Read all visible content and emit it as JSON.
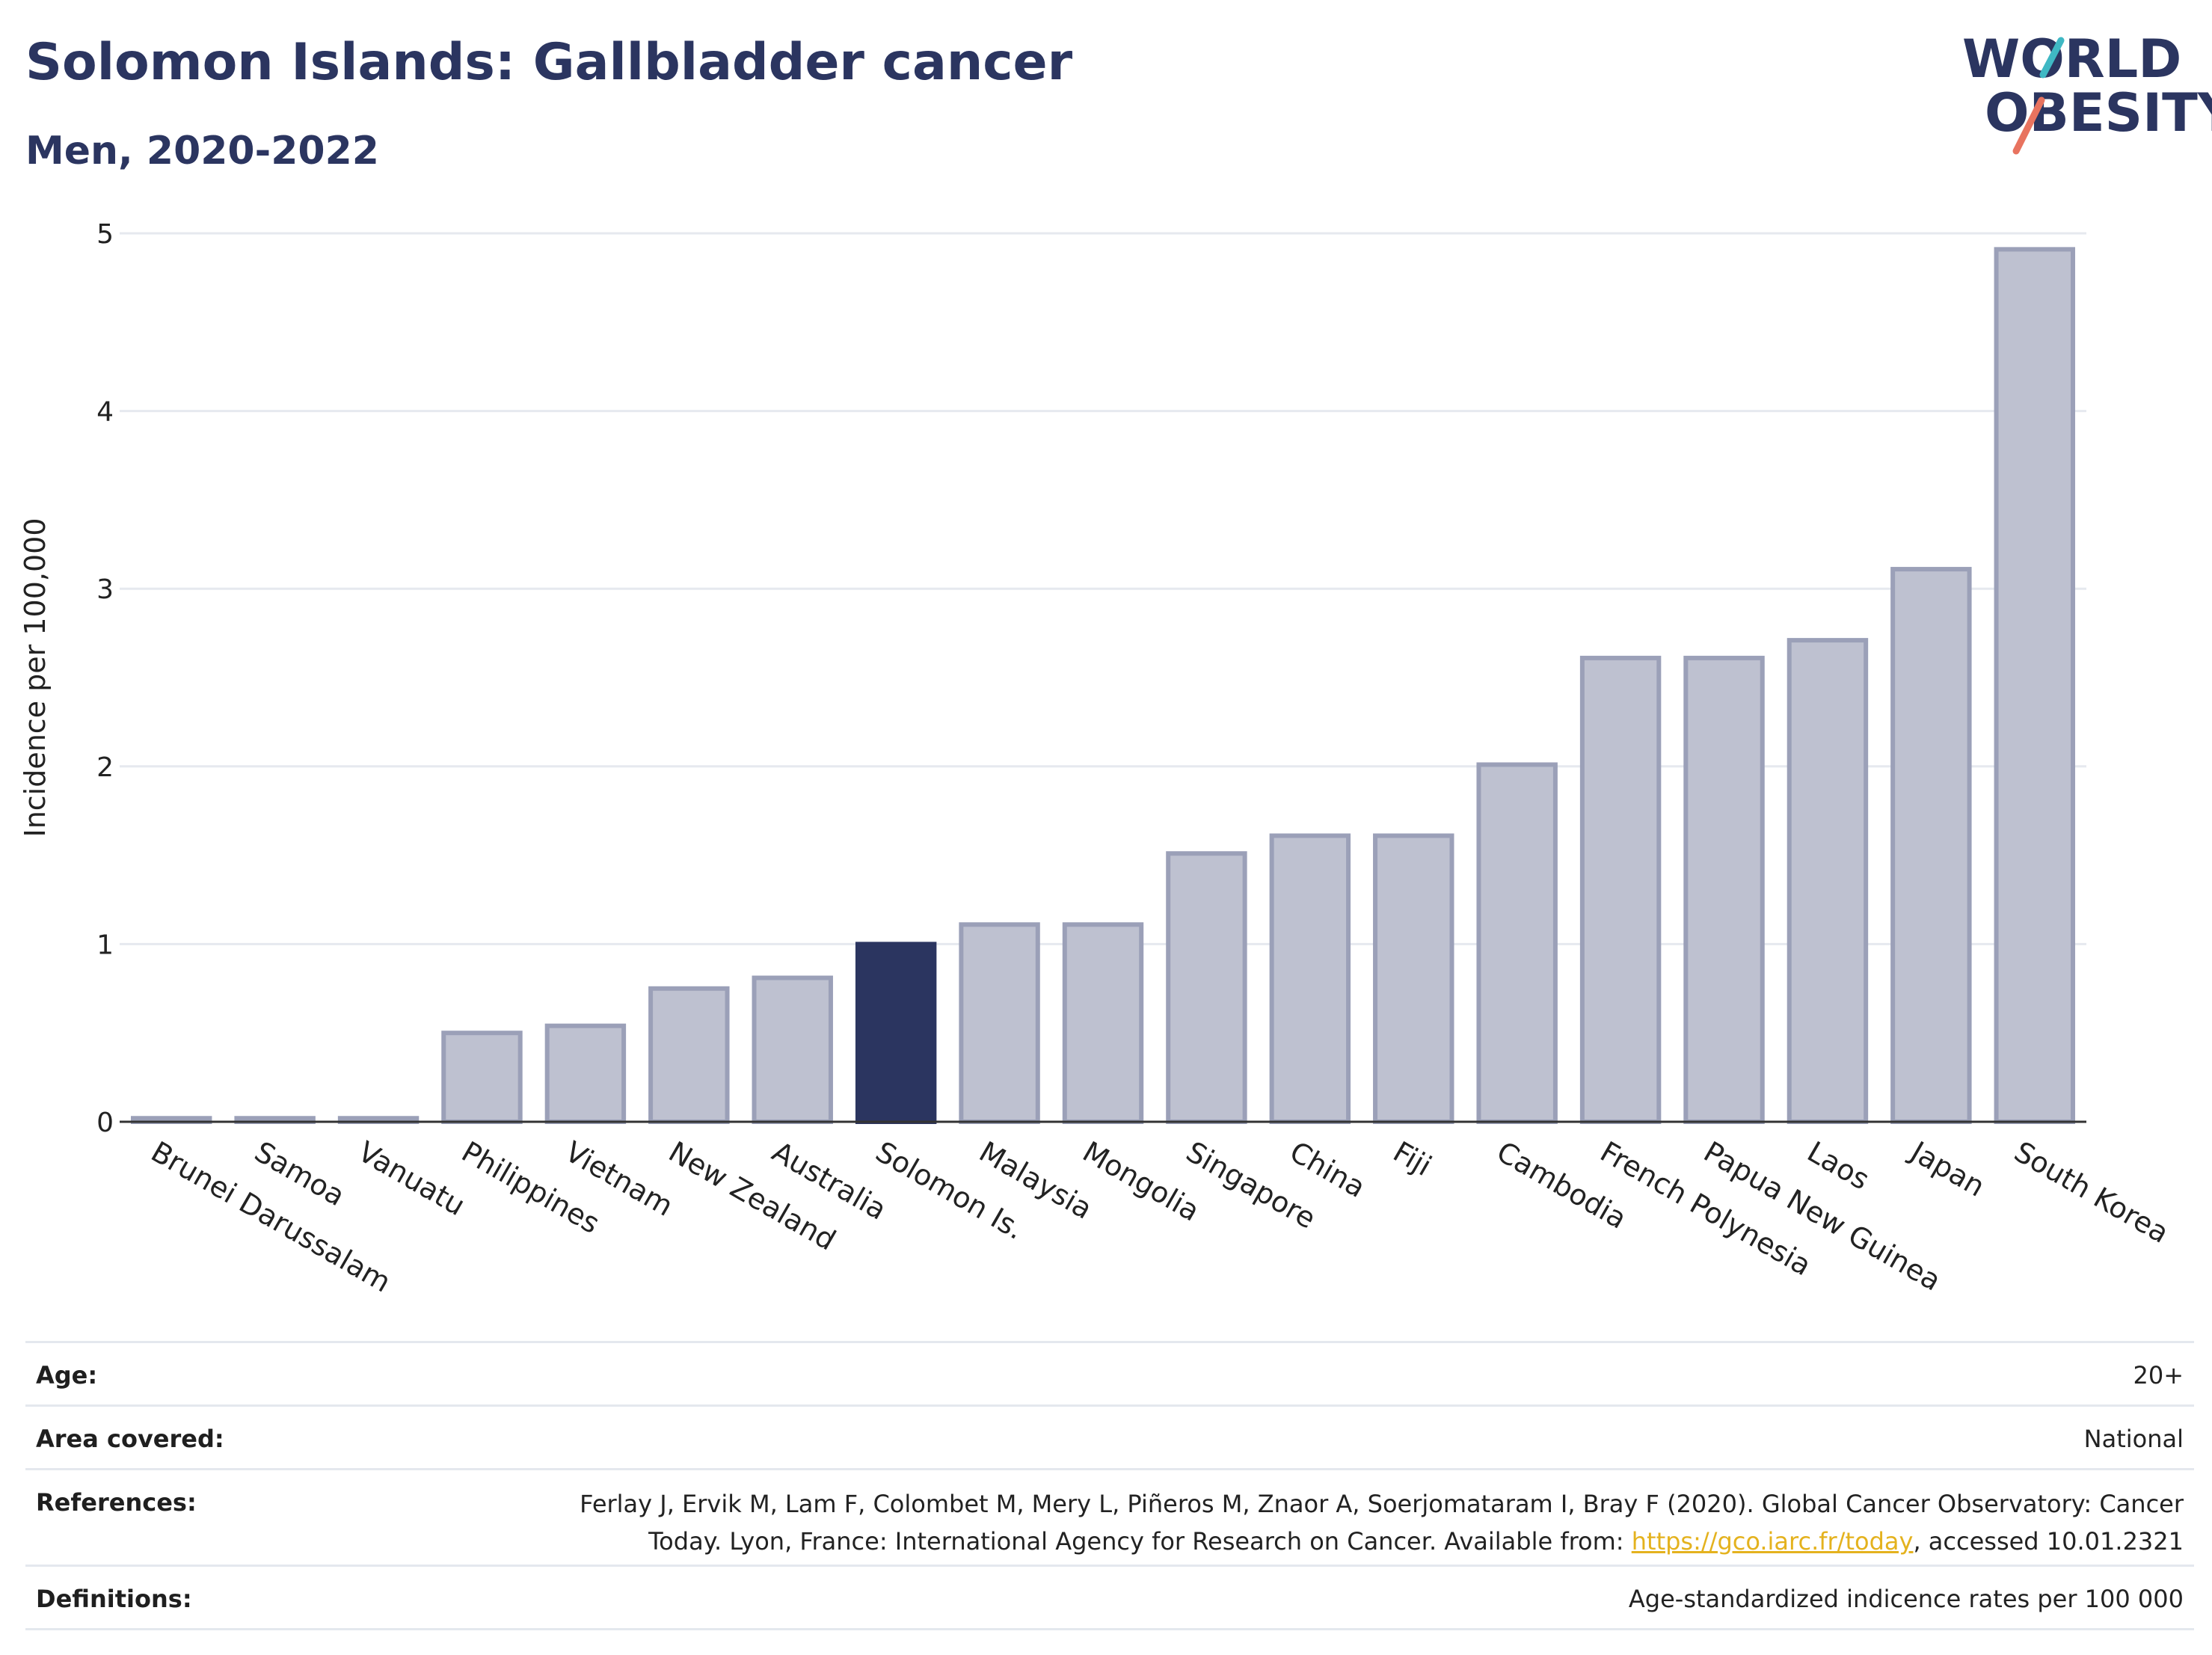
{
  "header": {
    "title": "Solomon Islands: Gallbladder cancer",
    "subtitle": "Men, 2020-2022"
  },
  "logo": {
    "line1": "WORLD",
    "line2": "OBESITY",
    "slash_colors": [
      "#3fb8c4",
      "#e8735f"
    ]
  },
  "colors": {
    "highlight_bar": "#2b3560",
    "other_bar_fill": "#bec1d0",
    "other_bar_stroke": "#9ba0b8",
    "text": "#2b3560"
  },
  "chart_data": {
    "type": "bar",
    "ylabel": "Incidence per 100,000",
    "ylim": [
      0,
      5
    ],
    "yticks": [
      "0",
      "1",
      "2",
      "3",
      "4",
      "5"
    ],
    "grid": true,
    "highlight": "Solomon Is.",
    "categories": [
      "Brunei Darussalam",
      "Samoa",
      "Vanuatu",
      "Philippines",
      "Vietnam",
      "New Zealand",
      "Australia",
      "Solomon Is.",
      "Malaysia",
      "Mongolia",
      "Singapore",
      "China",
      "Fiji",
      "Cambodia",
      "French Polynesia",
      "Papua New Guinea",
      "Laos",
      "Japan",
      "South Korea"
    ],
    "values": [
      0.02,
      0.02,
      0.02,
      0.5,
      0.54,
      0.75,
      0.81,
      1.0,
      1.11,
      1.11,
      1.51,
      1.61,
      1.61,
      2.01,
      2.61,
      2.61,
      2.71,
      3.11,
      4.91
    ]
  },
  "meta": {
    "age_label": "Age:",
    "age_value": "20+",
    "area_label": "Area covered:",
    "area_value": "National",
    "references_label": "References:",
    "references_line1": "Ferlay J, Ervik M, Lam F, Colombet M, Mery L, Piñeros M, Znaor A, Soerjomataram I, Bray F (2020). Global Cancer Observatory: Cancer",
    "references_line2_pre": "Today. Lyon, France: International Agency for Research on Cancer. Available from: ",
    "references_link": "https://gco.iarc.fr/today",
    "references_line2_post": ", accessed 10.01.2321",
    "definitions_label": "Definitions:",
    "definitions_value": "Age-standardized indicence rates per 100 000"
  }
}
